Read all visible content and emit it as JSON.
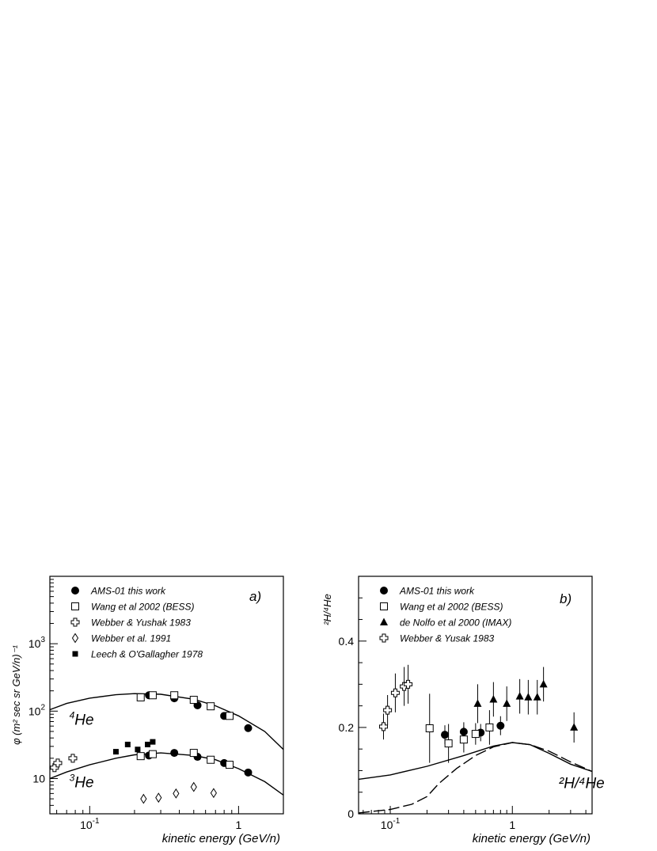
{
  "chart_data": [
    {
      "type": "scatter",
      "panel_label": "a)",
      "xlabel": "kinetic energy (GeV/n)",
      "ylabel": "φ (m² sec sr GeV/n)⁻¹",
      "x_scale": "log",
      "y_scale": "log",
      "xlim": [
        0.054,
        2.0
      ],
      "ylim": [
        3.0,
        10000
      ],
      "x_ticks": [
        {
          "value": 0.1,
          "label": "10",
          "exp": "-1"
        },
        {
          "value": 1,
          "label": "1",
          "exp": ""
        }
      ],
      "y_ticks": [
        {
          "value": 10,
          "label": "10",
          "exp": ""
        },
        {
          "value": 100,
          "label": "10",
          "exp": "2"
        },
        {
          "value": 1000,
          "label": "10",
          "exp": "3"
        }
      ],
      "grid": false,
      "legend_position": "top-left",
      "annotations": [
        {
          "base": "He",
          "sup": "4",
          "x": 0.073,
          "y": 63
        },
        {
          "base": "He",
          "sup": "3",
          "x": 0.073,
          "y": 7.4
        }
      ],
      "series": [
        {
          "name": "AMS-01 this work",
          "marker": "filled-circle",
          "points": [
            [
              0.25,
              172
            ],
            [
              0.37,
              155
            ],
            [
              0.53,
              122
            ],
            [
              0.8,
              85
            ],
            [
              1.16,
              56
            ],
            [
              0.25,
              22
            ],
            [
              0.37,
              24
            ],
            [
              0.53,
              21
            ],
            [
              0.8,
              17
            ],
            [
              1.16,
              12.3
            ]
          ]
        },
        {
          "name": "Wang et al 2002 (BESS)",
          "marker": "open-square",
          "points": [
            [
              0.22,
              160
            ],
            [
              0.265,
              172
            ],
            [
              0.37,
              172
            ],
            [
              0.5,
              147
            ],
            [
              0.65,
              118
            ],
            [
              0.87,
              85
            ],
            [
              0.22,
              21.5
            ],
            [
              0.265,
              23
            ],
            [
              0.5,
              24
            ],
            [
              0.65,
              19
            ],
            [
              0.87,
              16
            ]
          ]
        },
        {
          "name": "Webber & Yushak 1983",
          "marker": "open-cross",
          "points": [
            [
              0.058,
              14.5
            ],
            [
              0.061,
              17
            ],
            [
              0.077,
              20
            ]
          ]
        },
        {
          "name": "Webber et al. 1991",
          "marker": "open-diamond",
          "points": [
            [
              0.23,
              5
            ],
            [
              0.29,
              5.2
            ],
            [
              0.38,
              6
            ],
            [
              0.5,
              7.5
            ],
            [
              0.68,
              6.1
            ]
          ]
        },
        {
          "name": "Leech & O'Gallagher 1978",
          "marker": "filled-square",
          "points": [
            [
              0.15,
              25
            ],
            [
              0.18,
              32
            ],
            [
              0.21,
              27
            ],
            [
              0.245,
              32
            ],
            [
              0.265,
              35
            ]
          ]
        }
      ],
      "curves": [
        {
          "label": "4He",
          "style": "solid",
          "points": [
            [
              0.054,
              105
            ],
            [
              0.07,
              130
            ],
            [
              0.1,
              156
            ],
            [
              0.15,
              175
            ],
            [
              0.2,
              182
            ],
            [
              0.3,
              178
            ],
            [
              0.5,
              150
            ],
            [
              0.7,
              120
            ],
            [
              1,
              85
            ],
            [
              1.5,
              50
            ],
            [
              2,
              27
            ]
          ]
        },
        {
          "label": "3He",
          "style": "solid",
          "points": [
            [
              0.054,
              10
            ],
            [
              0.07,
              12.5
            ],
            [
              0.1,
              16
            ],
            [
              0.15,
              20
            ],
            [
              0.2,
              22.5
            ],
            [
              0.3,
              24
            ],
            [
              0.5,
              22
            ],
            [
              0.7,
              19
            ],
            [
              1,
              14
            ],
            [
              1.5,
              9
            ],
            [
              2,
              5.7
            ]
          ]
        }
      ]
    },
    {
      "type": "scatter",
      "panel_label": "b)",
      "xlabel": "kinetic energy (GeV/n)",
      "ylabel": "²H/⁴He",
      "x_scale": "log",
      "y_scale": "linear",
      "xlim": [
        0.055,
        4.5
      ],
      "ylim": [
        0,
        0.55
      ],
      "x_ticks": [
        {
          "value": 0.1,
          "label": "10",
          "exp": "-1"
        },
        {
          "value": 1,
          "label": "1",
          "exp": ""
        }
      ],
      "y_ticks": [
        {
          "value": 0,
          "label": "0"
        },
        {
          "value": 0.2,
          "label": "0.2"
        },
        {
          "value": 0.4,
          "label": "0.4"
        }
      ],
      "grid": false,
      "legend_position": "top-left",
      "annotations": [
        {
          "text": "²H/⁴He",
          "x": 2.4,
          "y": 0.06
        }
      ],
      "series": [
        {
          "name": "AMS-01 this work",
          "marker": "filled-circle",
          "points": [
            [
              0.28,
              0.183,
              0.183
            ],
            [
              0.4,
              0.19,
              0.19
            ],
            [
              0.55,
              0.188,
              0.188
            ],
            [
              0.8,
              0.204,
              0.204
            ]
          ],
          "errors": [
            0.022,
            0.022,
            0.02,
            0.022
          ]
        },
        {
          "name": "Wang et al 2002 (BESS)",
          "marker": "open-square",
          "points": [
            [
              0.21,
              0.198
            ],
            [
              0.3,
              0.163
            ],
            [
              0.4,
              0.172
            ],
            [
              0.5,
              0.185
            ],
            [
              0.65,
              0.2
            ]
          ],
          "errors": [
            0.08,
            0.045,
            0.03,
            0.025,
            0.04
          ]
        },
        {
          "name": "de Nolfo et al 2000 (IMAX)",
          "marker": "filled-triangle",
          "points": [
            [
              0.52,
              0.255
            ],
            [
              0.7,
              0.265
            ],
            [
              0.9,
              0.255
            ],
            [
              1.15,
              0.272
            ],
            [
              1.35,
              0.27
            ],
            [
              1.6,
              0.27
            ],
            [
              1.8,
              0.3
            ],
            [
              3.2,
              0.2
            ]
          ],
          "errors": [
            0.045,
            0.04,
            0.04,
            0.04,
            0.04,
            0.04,
            0.04,
            0.035
          ]
        },
        {
          "name": "Webber & Yusak 1983",
          "marker": "open-cross",
          "points": [
            [
              0.088,
              0.202
            ],
            [
              0.095,
              0.24
            ],
            [
              0.11,
              0.28
            ],
            [
              0.13,
              0.295
            ],
            [
              0.14,
              0.3
            ]
          ],
          "errors": [
            0.03,
            0.035,
            0.045,
            0.045,
            0.045
          ]
        }
      ],
      "curves": [
        {
          "style": "solid",
          "points": [
            [
              0.055,
              0.08
            ],
            [
              0.1,
              0.09
            ],
            [
              0.2,
              0.11
            ],
            [
              0.4,
              0.135
            ],
            [
              0.7,
              0.157
            ],
            [
              1,
              0.165
            ],
            [
              1.4,
              0.16
            ],
            [
              2,
              0.14
            ],
            [
              3,
              0.115
            ],
            [
              4.5,
              0.098
            ]
          ]
        },
        {
          "style": "dashed",
          "points": [
            [
              0.055,
              0.002
            ],
            [
              0.1,
              0.01
            ],
            [
              0.15,
              0.022
            ],
            [
              0.2,
              0.04
            ],
            [
              0.25,
              0.07
            ],
            [
              0.35,
              0.105
            ],
            [
              0.5,
              0.135
            ],
            [
              0.7,
              0.155
            ],
            [
              1,
              0.165
            ],
            [
              1.4,
              0.16
            ],
            [
              2,
              0.145
            ],
            [
              3,
              0.12
            ],
            [
              4.5,
              0.098
            ]
          ]
        }
      ]
    }
  ]
}
